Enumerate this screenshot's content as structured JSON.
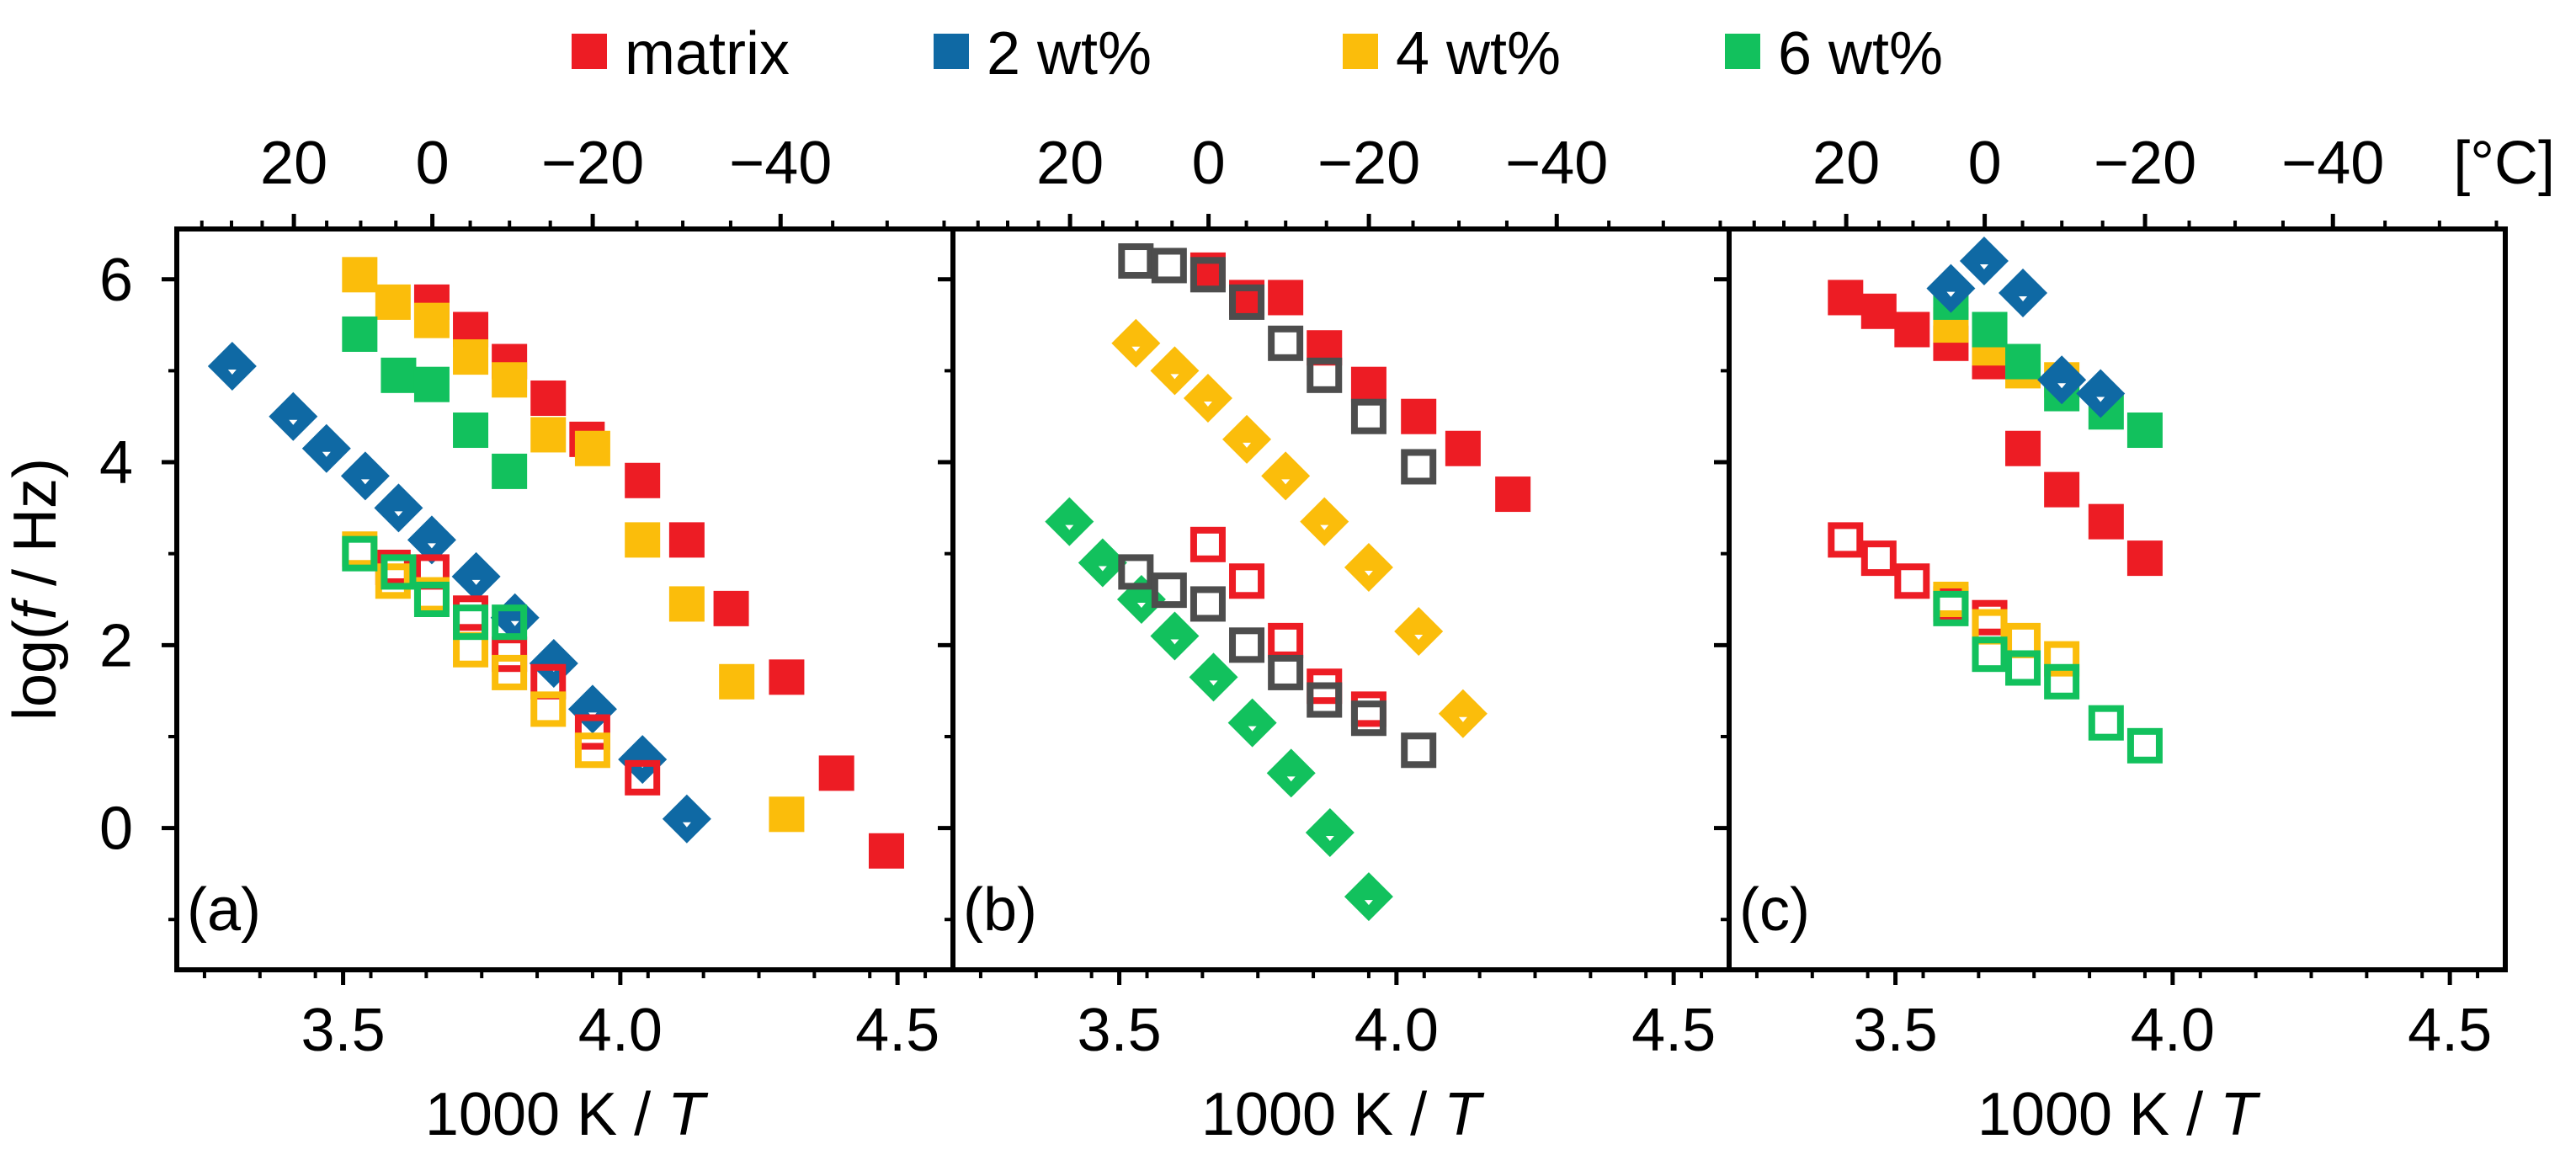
{
  "legend": [
    {
      "label": "matrix",
      "color": "#ed1c24"
    },
    {
      "label": "2 wt%",
      "color": "#0f69a4"
    },
    {
      "label": "4 wt%",
      "color": "#fbbd0b"
    },
    {
      "label": "6 wt%",
      "color": "#12c15d"
    }
  ],
  "colors": {
    "matrix": "#ed1c24",
    "wt2": "#0f69a4",
    "wt4": "#fbbd0b",
    "wt6": "#12c15d",
    "gray": "#4d4d4d"
  },
  "axes": {
    "xlabel_prefix": "1000 K / ",
    "xlabel_var": "T",
    "ylabel_prefix": "log(",
    "ylabel_var": "f",
    "ylabel_suffix": " / Hz)",
    "top_unit": "[°C]",
    "xticks": [
      "3.5",
      "4.0",
      "4.5"
    ],
    "yticks": [
      "6",
      "4",
      "2",
      "0"
    ],
    "top_ticks": [
      "20",
      "0",
      "−20",
      "−40"
    ]
  },
  "chart_data": [
    {
      "type": "scatter",
      "panel": "(a)",
      "xlabel": "1000 K / T",
      "ylabel": "log(f / Hz)",
      "top_axis_unit": "°C",
      "xlim": [
        3.2,
        4.6
      ],
      "ylim": [
        -1.55,
        6.55
      ],
      "series": [
        {
          "name": "matrix",
          "color": "#ed1c24",
          "marker": "square",
          "filled": true,
          "x": [
            3.66,
            3.73,
            3.8,
            3.87,
            3.94,
            4.04,
            4.12,
            4.2,
            4.3,
            4.39,
            4.48
          ],
          "y": [
            5.75,
            5.45,
            5.1,
            4.7,
            4.25,
            3.8,
            3.15,
            2.4,
            1.65,
            0.6,
            -0.25
          ]
        },
        {
          "name": "4 wt%",
          "color": "#fbbd0b",
          "marker": "square",
          "filled": true,
          "x": [
            3.53,
            3.59,
            3.66,
            3.73,
            3.8,
            3.87,
            3.95,
            4.04,
            4.12,
            4.21,
            4.3
          ],
          "y": [
            6.05,
            5.75,
            5.55,
            5.15,
            4.9,
            4.3,
            4.15,
            3.15,
            2.45,
            1.6,
            0.15
          ]
        },
        {
          "name": "6 wt%",
          "color": "#12c15d",
          "marker": "square",
          "filled": true,
          "x": [
            3.53,
            3.6,
            3.66,
            3.73,
            3.8
          ],
          "y": [
            5.4,
            4.95,
            4.85,
            4.35,
            3.9
          ]
        },
        {
          "name": "2 wt%",
          "color": "#0f69a4",
          "marker": "diamond",
          "filled": true,
          "x": [
            3.3,
            3.41,
            3.47,
            3.54,
            3.6,
            3.66,
            3.74,
            3.81,
            3.88,
            3.95,
            4.04,
            4.12
          ],
          "y": [
            5.05,
            4.5,
            4.15,
            3.85,
            3.5,
            3.15,
            2.75,
            2.3,
            1.8,
            1.3,
            0.75,
            0.1
          ]
        },
        {
          "name": "matrix",
          "color": "#ed1c24",
          "marker": "square",
          "filled": false,
          "x": [
            3.59,
            3.66,
            3.73,
            3.8,
            3.87,
            3.95,
            4.04
          ],
          "y": [
            2.85,
            2.8,
            2.35,
            1.9,
            1.6,
            1.05,
            0.55
          ]
        },
        {
          "name": "4 wt%",
          "color": "#fbbd0b",
          "marker": "square",
          "filled": false,
          "x": [
            3.53,
            3.59,
            3.66,
            3.73,
            3.8,
            3.87,
            3.95
          ],
          "y": [
            3.05,
            2.7,
            2.55,
            1.95,
            1.7,
            1.3,
            0.85
          ]
        },
        {
          "name": "6 wt%",
          "color": "#12c15d",
          "marker": "square",
          "filled": false,
          "x": [
            3.53,
            3.6,
            3.66,
            3.73,
            3.8
          ],
          "y": [
            3.0,
            2.8,
            2.5,
            2.25,
            2.25
          ]
        }
      ]
    },
    {
      "type": "scatter",
      "panel": "(b)",
      "xlabel": "1000 K / T",
      "ylabel": "log(f / Hz)",
      "top_axis_unit": "°C",
      "xlim": [
        3.2,
        4.6
      ],
      "ylim": [
        -1.55,
        6.55
      ],
      "series": [
        {
          "name": "matrix",
          "color": "#ed1c24",
          "marker": "square",
          "filled": true,
          "x": [
            3.66,
            3.73,
            3.8,
            3.87,
            3.95,
            4.04,
            4.12,
            4.21
          ],
          "y": [
            6.1,
            5.8,
            5.8,
            5.25,
            4.85,
            4.5,
            4.15,
            3.65
          ]
        },
        {
          "name": "",
          "color": "#4d4d4d",
          "marker": "square",
          "filled": false,
          "x": [
            3.53,
            3.59,
            3.66,
            3.73,
            3.8,
            3.87,
            3.95,
            4.04
          ],
          "y": [
            6.2,
            6.15,
            6.05,
            5.75,
            5.3,
            4.95,
            4.5,
            3.95
          ]
        },
        {
          "name": "4 wt%",
          "color": "#fbbd0b",
          "marker": "diamond",
          "filled": true,
          "x": [
            3.53,
            3.6,
            3.66,
            3.73,
            3.8,
            3.87,
            3.95,
            4.04,
            4.12
          ],
          "y": [
            5.3,
            5.0,
            4.7,
            4.25,
            3.85,
            3.35,
            2.85,
            2.15,
            1.25
          ]
        },
        {
          "name": "6 wt%",
          "color": "#12c15d",
          "marker": "diamond",
          "filled": true,
          "x": [
            3.41,
            3.47,
            3.54,
            3.6,
            3.67,
            3.74,
            3.81,
            3.88,
            3.95
          ],
          "y": [
            3.35,
            2.9,
            2.5,
            2.1,
            1.65,
            1.15,
            0.6,
            -0.05,
            -0.75
          ]
        },
        {
          "name": "matrix",
          "color": "#ed1c24",
          "marker": "square",
          "filled": false,
          "x": [
            3.66,
            3.73,
            3.8,
            3.87,
            3.95
          ],
          "y": [
            3.1,
            2.7,
            2.05,
            1.55,
            1.3
          ]
        },
        {
          "name": "",
          "color": "#4d4d4d",
          "marker": "square",
          "filled": false,
          "x": [
            3.53,
            3.59,
            3.66,
            3.73,
            3.8,
            3.87,
            3.95,
            4.04
          ],
          "y": [
            2.8,
            2.6,
            2.45,
            2.0,
            1.7,
            1.4,
            1.2,
            0.85
          ]
        }
      ]
    },
    {
      "type": "scatter",
      "panel": "(c)",
      "xlabel": "1000 K / T",
      "ylabel": "log(f / Hz)",
      "top_axis_unit": "°C",
      "xlim": [
        3.2,
        4.6
      ],
      "ylim": [
        -1.55,
        6.55
      ],
      "series": [
        {
          "name": "matrix",
          "color": "#ed1c24",
          "marker": "square",
          "filled": true,
          "x": [
            3.41,
            3.47,
            3.53,
            3.6,
            3.67,
            3.73,
            3.8,
            3.88,
            3.95
          ],
          "y": [
            5.8,
            5.65,
            5.45,
            5.3,
            5.1,
            4.15,
            3.7,
            3.35,
            2.95
          ]
        },
        {
          "name": "4 wt%",
          "color": "#fbbd0b",
          "marker": "square",
          "filled": true,
          "x": [
            3.6,
            3.67,
            3.73,
            3.8
          ],
          "y": [
            5.5,
            5.25,
            5.0,
            4.9
          ]
        },
        {
          "name": "6 wt%",
          "color": "#12c15d",
          "marker": "square",
          "filled": true,
          "x": [
            3.6,
            3.67,
            3.73,
            3.8,
            3.88,
            3.95
          ],
          "y": [
            5.75,
            5.45,
            5.1,
            4.75,
            4.55,
            4.35
          ]
        },
        {
          "name": "2 wt%",
          "color": "#0f69a4",
          "marker": "diamond",
          "filled": true,
          "x": [
            3.6,
            3.66,
            3.73,
            3.8,
            3.87
          ],
          "y": [
            5.9,
            6.2,
            5.85,
            4.9,
            4.75
          ]
        },
        {
          "name": "matrix",
          "color": "#ed1c24",
          "marker": "square",
          "filled": false,
          "x": [
            3.41,
            3.47,
            3.53,
            3.6,
            3.67
          ],
          "y": [
            3.15,
            2.95,
            2.7,
            2.45,
            2.3
          ]
        },
        {
          "name": "4 wt%",
          "color": "#fbbd0b",
          "marker": "square",
          "filled": false,
          "x": [
            3.6,
            3.67,
            3.73,
            3.8
          ],
          "y": [
            2.5,
            2.2,
            2.05,
            1.85
          ]
        },
        {
          "name": "6 wt%",
          "color": "#12c15d",
          "marker": "square",
          "filled": false,
          "x": [
            3.6,
            3.67,
            3.73,
            3.8,
            3.88,
            3.95
          ],
          "y": [
            2.4,
            1.9,
            1.75,
            1.6,
            1.15,
            0.9
          ]
        }
      ]
    }
  ]
}
